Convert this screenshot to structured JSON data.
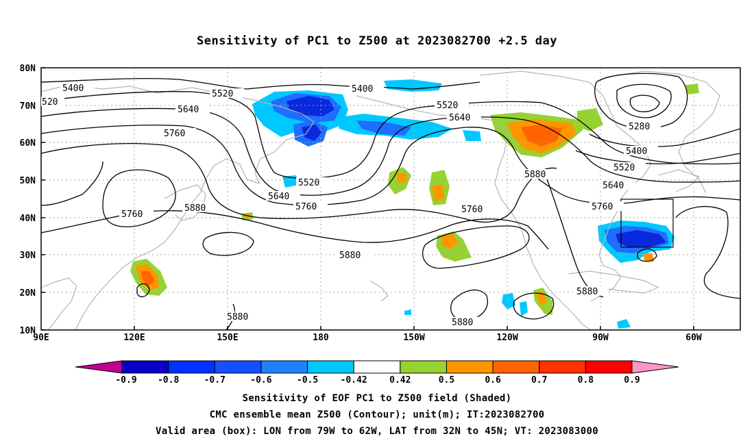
{
  "title": "Sensitivity of PC1 to Z500 at 2023082700 +2.5 day",
  "lat_labels": [
    "80N",
    "70N",
    "60N",
    "50N",
    "40N",
    "30N",
    "20N",
    "10N"
  ],
  "lon_labels": [
    "90E",
    "120E",
    "150E",
    "180",
    "150W",
    "120W",
    "90W",
    "60W"
  ],
  "contour_labels": [
    {
      "id": "c5400a",
      "text": "5400"
    },
    {
      "id": "c520",
      "text": "520"
    },
    {
      "id": "c5520a",
      "text": "5520"
    },
    {
      "id": "c5400b",
      "text": "5400"
    },
    {
      "id": "c5640a",
      "text": "5640"
    },
    {
      "id": "c5760a",
      "text": "5760"
    },
    {
      "id": "c5520b",
      "text": "5520"
    },
    {
      "id": "c5640b",
      "text": "5640"
    },
    {
      "id": "c5520c",
      "text": "5520"
    },
    {
      "id": "c5640c",
      "text": "5640"
    },
    {
      "id": "c5760b",
      "text": "5760"
    },
    {
      "id": "c5760c",
      "text": "5760"
    },
    {
      "id": "c5880a",
      "text": "5880"
    },
    {
      "id": "c5880b",
      "text": "5880"
    },
    {
      "id": "c5880c",
      "text": "5880"
    },
    {
      "id": "c5880d",
      "text": "5880"
    },
    {
      "id": "c5880e",
      "text": "5880"
    },
    {
      "id": "c5760d",
      "text": "5760"
    },
    {
      "id": "c5280",
      "text": "5280"
    },
    {
      "id": "c5400c",
      "text": "5400"
    },
    {
      "id": "c5520d",
      "text": "5520"
    },
    {
      "id": "c5640d",
      "text": "5640"
    },
    {
      "id": "c5760e",
      "text": "5760"
    },
    {
      "id": "c5880f",
      "text": "5880"
    }
  ],
  "colorbar": {
    "labels": [
      "-0.9",
      "-0.8",
      "-0.7",
      "-0.6",
      "-0.5",
      "-0.42",
      "0.42",
      "0.5",
      "0.6",
      "0.7",
      "0.8",
      "0.9"
    ],
    "colors": {
      "below": "#c2008f",
      "bins": [
        "#0a00c8",
        "#0032ff",
        "#1450ff",
        "#1e82ff",
        "#00c8ff",
        "#ffffff",
        "#96d232",
        "#ff9600",
        "#ff6400",
        "#ff3200",
        "#ff0000"
      ],
      "above": "#ff96c8"
    }
  },
  "colors": {
    "blue_dark": "#0a28dc",
    "blue_mid": "#1e6eff",
    "blue_light": "#00c8ff",
    "green": "#96d232",
    "orange": "#ff9600",
    "orange_dark": "#ff6400",
    "coast": "#b4b4b4",
    "grid": "#aaaaaa"
  },
  "captions": [
    "Sensitivity of EOF PC1 to Z500 field (Shaded)",
    "CMC ensemble mean Z500 (Contour); unit(m); IT:2023082700",
    "Valid area (box): LON from 79W to 62W, LAT from 32N to 45N; VT: 2023083000"
  ]
}
